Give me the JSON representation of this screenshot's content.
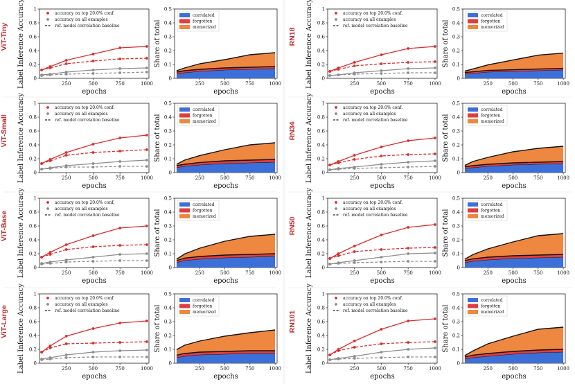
{
  "colors": {
    "top": "#dd2b2b",
    "all": "#8c8c8c",
    "baseline": "#222222",
    "correlated": "#3c6fd8",
    "forgotten": "#e03d3d",
    "memorized": "#ee8740",
    "label": "#c0282b"
  },
  "text": {
    "acc_ylabel": "Label Inference Accuracy",
    "share_ylabel": "Share of total",
    "xlabel": "epochs",
    "legend_top": "accuracy on top 20.0% conf.",
    "legend_all": "accuracy on all examples",
    "legend_base": "ref. model correlation baseline",
    "legend_correlated": "correlated",
    "legend_forgotten": "forgotten",
    "legend_memorized": "memorized"
  },
  "chart_data": [
    {
      "model": "ViT-Tiny",
      "accuracy": {
        "type": "line",
        "x": [
          20,
          100,
          250,
          500,
          750,
          1000
        ],
        "series": [
          {
            "name": "accuracy on top 20.0% conf.",
            "values": [
              0.12,
              0.17,
              0.26,
              0.35,
              0.44,
              0.46
            ]
          },
          {
            "name": "accuracy on all examples",
            "values": [
              0.05,
              0.06,
              0.09,
              0.12,
              0.14,
              0.15
            ]
          },
          {
            "name": "top 20.0% dashed",
            "values": [
              0.12,
              0.15,
              0.21,
              0.25,
              0.28,
              0.29
            ]
          },
          {
            "name": "all examples dashed",
            "values": [
              0.04,
              0.05,
              0.06,
              0.07,
              0.08,
              0.09
            ]
          }
        ],
        "ylim": [
          0,
          1.0
        ],
        "yticks": [
          0,
          0.2,
          0.4,
          0.6,
          0.8,
          1.0
        ],
        "xticks": [
          250,
          500,
          750,
          1000
        ]
      },
      "share": {
        "type": "area",
        "x": [
          20,
          100,
          250,
          500,
          750,
          1000
        ],
        "correlated": [
          0.03,
          0.04,
          0.05,
          0.06,
          0.065,
          0.07
        ],
        "forgotten": [
          0.015,
          0.015,
          0.015,
          0.015,
          0.015,
          0.015
        ],
        "memorized": [
          0.01,
          0.02,
          0.04,
          0.06,
          0.09,
          0.1
        ],
        "ylim": [
          0,
          0.5
        ],
        "yticks": [
          0,
          0.1,
          0.2,
          0.3,
          0.4,
          0.5
        ],
        "xticks": [
          250,
          500,
          750,
          1000
        ]
      }
    },
    {
      "model": "RN18",
      "accuracy": {
        "type": "line",
        "x": [
          20,
          100,
          250,
          500,
          750,
          1000
        ],
        "series": [
          {
            "name": "accuracy on top 20.0% conf.",
            "values": [
              0.1,
              0.15,
              0.23,
              0.34,
              0.43,
              0.46
            ]
          },
          {
            "name": "accuracy on all examples",
            "values": [
              0.04,
              0.05,
              0.08,
              0.11,
              0.14,
              0.15
            ]
          },
          {
            "name": "top 20.0% dashed",
            "values": [
              0.1,
              0.13,
              0.18,
              0.21,
              0.23,
              0.24
            ]
          },
          {
            "name": "all examples dashed",
            "values": [
              0.04,
              0.05,
              0.06,
              0.07,
              0.08,
              0.08
            ]
          }
        ],
        "ylim": [
          0,
          1.0
        ],
        "yticks": [
          0,
          0.2,
          0.4,
          0.6,
          0.8,
          1.0
        ],
        "xticks": [
          250,
          500,
          750,
          1000
        ]
      },
      "share": {
        "type": "area",
        "x": [
          20,
          100,
          250,
          500,
          750,
          1000
        ],
        "correlated": [
          0.03,
          0.035,
          0.045,
          0.05,
          0.055,
          0.06
        ],
        "forgotten": [
          0.012,
          0.012,
          0.012,
          0.012,
          0.012,
          0.012
        ],
        "memorized": [
          0.01,
          0.02,
          0.04,
          0.07,
          0.1,
          0.11
        ],
        "ylim": [
          0,
          0.5
        ],
        "yticks": [
          0,
          0.1,
          0.2,
          0.3,
          0.4,
          0.5
        ],
        "xticks": [
          250,
          500,
          750,
          1000
        ]
      }
    },
    {
      "model": "ViT-Small",
      "accuracy": {
        "type": "line",
        "x": [
          20,
          100,
          250,
          500,
          750,
          1000
        ],
        "series": [
          {
            "name": "accuracy on top 20.0% conf.",
            "values": [
              0.13,
              0.19,
              0.29,
              0.41,
              0.5,
              0.54
            ]
          },
          {
            "name": "accuracy on all examples",
            "values": [
              0.05,
              0.07,
              0.1,
              0.13,
              0.16,
              0.18
            ]
          },
          {
            "name": "top 20.0% dashed",
            "values": [
              0.13,
              0.17,
              0.25,
              0.29,
              0.31,
              0.33
            ]
          },
          {
            "name": "all examples dashed",
            "values": [
              0.05,
              0.06,
              0.08,
              0.08,
              0.09,
              0.09
            ]
          }
        ],
        "ylim": [
          0,
          1.0
        ],
        "yticks": [
          0,
          0.2,
          0.4,
          0.6,
          0.8,
          1.0
        ],
        "xticks": [
          250,
          500,
          750,
          1000
        ]
      },
      "share": {
        "type": "area",
        "x": [
          20,
          100,
          250,
          500,
          750,
          1000
        ],
        "correlated": [
          0.035,
          0.045,
          0.055,
          0.065,
          0.07,
          0.075
        ],
        "forgotten": [
          0.015,
          0.015,
          0.018,
          0.02,
          0.02,
          0.02
        ],
        "memorized": [
          0.01,
          0.03,
          0.05,
          0.08,
          0.11,
          0.12
        ],
        "ylim": [
          0,
          0.5
        ],
        "yticks": [
          0,
          0.1,
          0.2,
          0.3,
          0.4,
          0.5
        ],
        "xticks": [
          250,
          500,
          750,
          1000
        ]
      }
    },
    {
      "model": "RN34",
      "accuracy": {
        "type": "line",
        "x": [
          20,
          100,
          250,
          500,
          750,
          1000
        ],
        "series": [
          {
            "name": "accuracy on top 20.0% conf.",
            "values": [
              0.11,
              0.16,
              0.25,
              0.37,
              0.46,
              0.5
            ]
          },
          {
            "name": "accuracy on all examples",
            "values": [
              0.04,
              0.06,
              0.08,
              0.12,
              0.15,
              0.17
            ]
          },
          {
            "name": "top 20.0% dashed",
            "values": [
              0.11,
              0.14,
              0.19,
              0.24,
              0.26,
              0.27
            ]
          },
          {
            "name": "all examples dashed",
            "values": [
              0.04,
              0.05,
              0.06,
              0.07,
              0.08,
              0.09
            ]
          }
        ],
        "ylim": [
          0,
          1.0
        ],
        "yticks": [
          0,
          0.2,
          0.4,
          0.6,
          0.8,
          1.0
        ],
        "xticks": [
          250,
          500,
          750,
          1000
        ]
      },
      "share": {
        "type": "area",
        "x": [
          20,
          100,
          250,
          500,
          750,
          1000
        ],
        "correlated": [
          0.03,
          0.035,
          0.045,
          0.055,
          0.06,
          0.065
        ],
        "forgotten": [
          0.012,
          0.015,
          0.015,
          0.015,
          0.015,
          0.015
        ],
        "memorized": [
          0.01,
          0.03,
          0.05,
          0.08,
          0.1,
          0.11
        ],
        "ylim": [
          0,
          0.5
        ],
        "yticks": [
          0,
          0.1,
          0.2,
          0.3,
          0.4,
          0.5
        ],
        "xticks": [
          250,
          500,
          750,
          1000
        ]
      }
    },
    {
      "model": "ViT-Base",
      "accuracy": {
        "type": "line",
        "x": [
          20,
          100,
          250,
          500,
          750,
          1000
        ],
        "series": [
          {
            "name": "accuracy on top 20.0% conf.",
            "values": [
              0.15,
              0.22,
              0.33,
              0.46,
              0.57,
              0.6
            ]
          },
          {
            "name": "accuracy on all examples",
            "values": [
              0.06,
              0.08,
              0.11,
              0.15,
              0.19,
              0.2
            ]
          },
          {
            "name": "top 20.0% dashed",
            "values": [
              0.15,
              0.19,
              0.26,
              0.3,
              0.32,
              0.33
            ]
          },
          {
            "name": "all examples dashed",
            "values": [
              0.05,
              0.06,
              0.08,
              0.09,
              0.1,
              0.1
            ]
          }
        ],
        "ylim": [
          0,
          1.0
        ],
        "yticks": [
          0,
          0.2,
          0.4,
          0.6,
          0.8,
          1.0
        ],
        "xticks": [
          250,
          500,
          750,
          1000
        ]
      },
      "share": {
        "type": "area",
        "x": [
          20,
          100,
          250,
          500,
          750,
          1000
        ],
        "correlated": [
          0.035,
          0.05,
          0.06,
          0.07,
          0.075,
          0.08
        ],
        "forgotten": [
          0.015,
          0.018,
          0.02,
          0.02,
          0.02,
          0.02
        ],
        "memorized": [
          0.01,
          0.03,
          0.06,
          0.1,
          0.13,
          0.14
        ],
        "ylim": [
          0,
          0.5
        ],
        "yticks": [
          0,
          0.1,
          0.2,
          0.3,
          0.4,
          0.5
        ],
        "xticks": [
          250,
          500,
          750,
          1000
        ]
      }
    },
    {
      "model": "RN50",
      "accuracy": {
        "type": "line",
        "x": [
          20,
          100,
          250,
          500,
          750,
          1000
        ],
        "series": [
          {
            "name": "accuracy on top 20.0% conf.",
            "values": [
              0.13,
              0.2,
              0.31,
              0.47,
              0.58,
              0.62
            ]
          },
          {
            "name": "accuracy on all examples",
            "values": [
              0.05,
              0.07,
              0.1,
              0.15,
              0.2,
              0.21
            ]
          },
          {
            "name": "top 20.0% dashed",
            "values": [
              0.13,
              0.17,
              0.23,
              0.26,
              0.28,
              0.29
            ]
          },
          {
            "name": "all examples dashed",
            "values": [
              0.05,
              0.06,
              0.07,
              0.08,
              0.09,
              0.09
            ]
          }
        ],
        "ylim": [
          0,
          1.0
        ],
        "yticks": [
          0,
          0.2,
          0.4,
          0.6,
          0.8,
          1.0
        ],
        "xticks": [
          250,
          500,
          750,
          1000
        ]
      },
      "share": {
        "type": "area",
        "x": [
          20,
          100,
          250,
          500,
          750,
          1000
        ],
        "correlated": [
          0.035,
          0.045,
          0.055,
          0.065,
          0.07,
          0.075
        ],
        "forgotten": [
          0.015,
          0.018,
          0.02,
          0.02,
          0.02,
          0.02
        ],
        "memorized": [
          0.01,
          0.03,
          0.06,
          0.1,
          0.14,
          0.15
        ],
        "ylim": [
          0,
          0.5
        ],
        "yticks": [
          0,
          0.1,
          0.2,
          0.3,
          0.4,
          0.5
        ],
        "xticks": [
          250,
          500,
          750,
          1000
        ]
      }
    },
    {
      "model": "ViT-Large",
      "accuracy": {
        "type": "line",
        "x": [
          20,
          100,
          250,
          500,
          750,
          1000
        ],
        "series": [
          {
            "name": "accuracy on top 20.0% conf.",
            "values": [
              0.16,
              0.25,
              0.39,
              0.5,
              0.58,
              0.61
            ]
          },
          {
            "name": "accuracy on all examples",
            "values": [
              0.06,
              0.08,
              0.12,
              0.16,
              0.18,
              0.19
            ]
          },
          {
            "name": "top 20.0% dashed",
            "values": [
              0.16,
              0.22,
              0.28,
              0.29,
              0.3,
              0.31
            ]
          },
          {
            "name": "all examples dashed",
            "values": [
              0.05,
              0.06,
              0.08,
              0.09,
              0.09,
              0.09
            ]
          }
        ],
        "ylim": [
          0,
          1.0
        ],
        "yticks": [
          0,
          0.2,
          0.4,
          0.6,
          0.8,
          1.0
        ],
        "xticks": [
          250,
          500,
          750,
          1000
        ]
      },
      "share": {
        "type": "area",
        "x": [
          20,
          100,
          250,
          500,
          750,
          1000
        ],
        "correlated": [
          0.04,
          0.05,
          0.06,
          0.065,
          0.07,
          0.07
        ],
        "forgotten": [
          0.018,
          0.02,
          0.02,
          0.02,
          0.02,
          0.02
        ],
        "memorized": [
          0.04,
          0.06,
          0.08,
          0.11,
          0.13,
          0.15
        ],
        "ylim": [
          0,
          0.5
        ],
        "yticks": [
          0,
          0.1,
          0.2,
          0.3,
          0.4,
          0.5
        ],
        "xticks": [
          250,
          500,
          750,
          1000
        ]
      }
    },
    {
      "model": "RN101",
      "accuracy": {
        "type": "line",
        "x": [
          20,
          100,
          250,
          500,
          750,
          1000
        ],
        "series": [
          {
            "name": "accuracy on top 20.0% conf.",
            "values": [
              0.12,
              0.2,
              0.32,
              0.49,
              0.61,
              0.64
            ]
          },
          {
            "name": "accuracy on all examples",
            "values": [
              0.05,
              0.07,
              0.1,
              0.16,
              0.2,
              0.22
            ]
          },
          {
            "name": "top 20.0% dashed",
            "values": [
              0.12,
              0.18,
              0.23,
              0.28,
              0.3,
              0.31
            ]
          },
          {
            "name": "all examples dashed",
            "values": [
              0.05,
              0.06,
              0.07,
              0.08,
              0.09,
              0.09
            ]
          }
        ],
        "ylim": [
          0,
          1.0
        ],
        "yticks": [
          0,
          0.2,
          0.4,
          0.6,
          0.8,
          1.0
        ],
        "xticks": [
          250,
          500,
          750,
          1000
        ]
      },
      "share": {
        "type": "area",
        "x": [
          20,
          100,
          250,
          500,
          750,
          1000
        ],
        "correlated": [
          0.03,
          0.04,
          0.05,
          0.065,
          0.075,
          0.08
        ],
        "forgotten": [
          0.015,
          0.018,
          0.02,
          0.02,
          0.02,
          0.02
        ],
        "memorized": [
          0.01,
          0.03,
          0.07,
          0.11,
          0.15,
          0.16
        ],
        "ylim": [
          0,
          0.5
        ],
        "yticks": [
          0,
          0.1,
          0.2,
          0.3,
          0.4,
          0.5
        ],
        "xticks": [
          250,
          500,
          750,
          1000
        ]
      }
    }
  ]
}
